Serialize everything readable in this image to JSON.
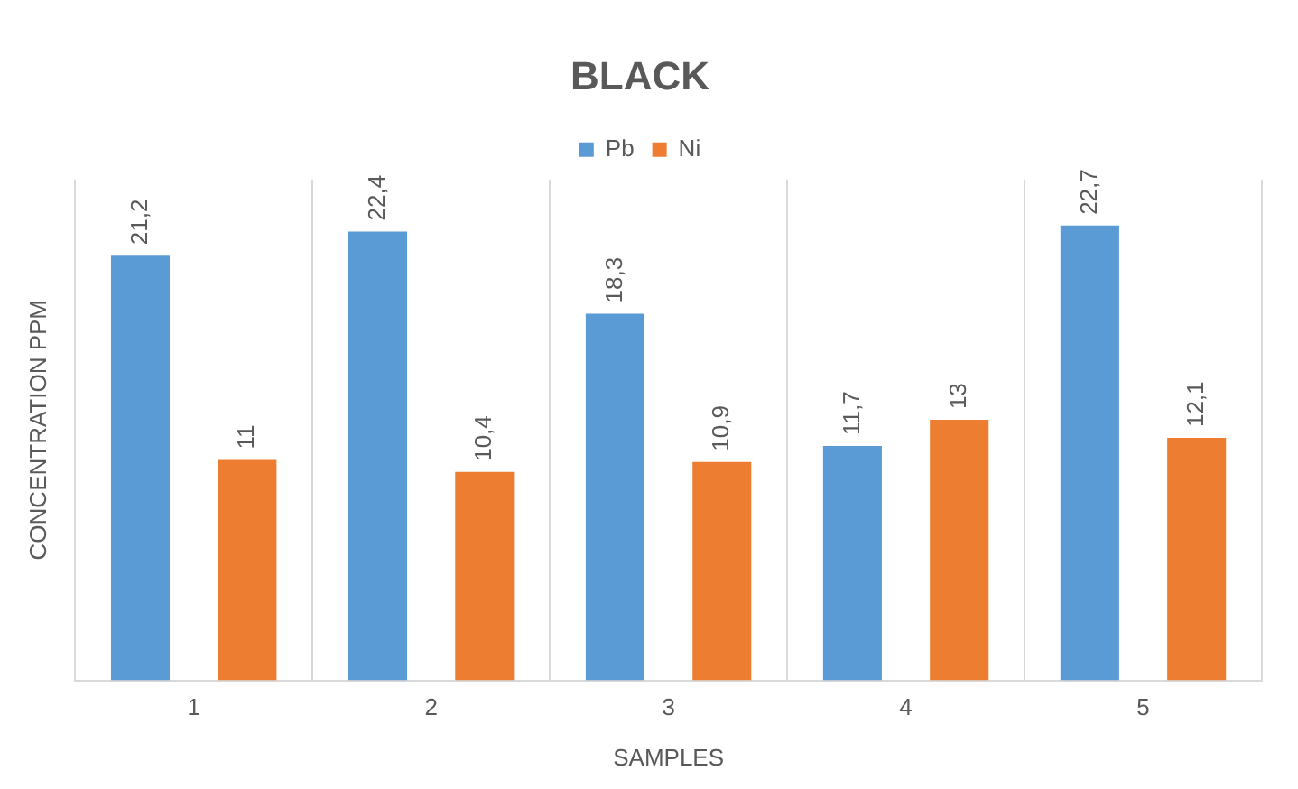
{
  "chart_data": {
    "type": "bar",
    "title": "BLACK",
    "xlabel": "SAMPLES",
    "ylabel": "CONCENTRATION PPM",
    "categories": [
      "1",
      "2",
      "3",
      "4",
      "5"
    ],
    "series": [
      {
        "name": "Pb",
        "color": "#5b9bd5",
        "values": [
          21.2,
          22.4,
          18.3,
          11.7,
          22.7
        ],
        "value_labels": [
          "21,2",
          "22,4",
          "18,3",
          "11,7",
          "22,7"
        ]
      },
      {
        "name": "Ni",
        "color": "#ed7d31",
        "values": [
          11,
          10.4,
          10.9,
          13,
          12.1
        ],
        "value_labels": [
          "11",
          "10,4",
          "10,9",
          "13",
          "12,1"
        ]
      }
    ],
    "ylim": [
      0,
      25
    ],
    "grid": "x",
    "legend": "top"
  }
}
